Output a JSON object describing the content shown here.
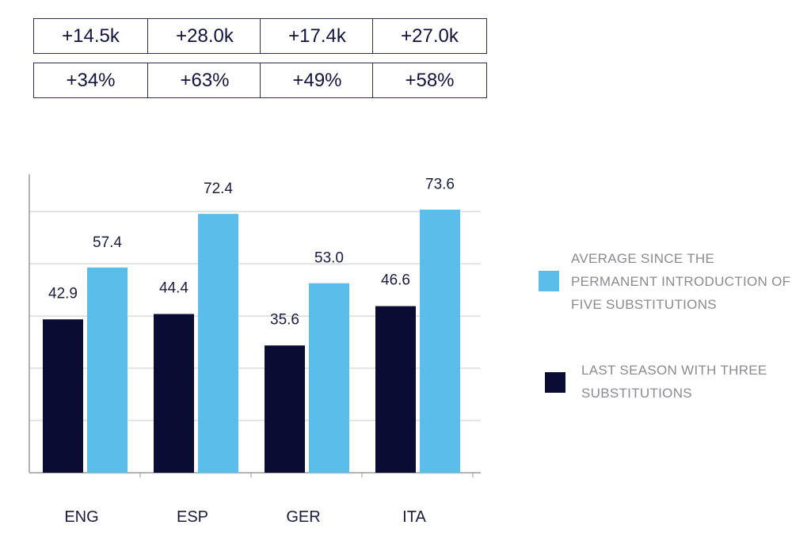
{
  "stat_boxes": {
    "absolute": [
      "+14.5k",
      "+28.0k",
      "+17.4k",
      "+27.0k"
    ],
    "percent": [
      "+34%",
      "+63%",
      "+49%",
      "+58%"
    ]
  },
  "colors": {
    "five_subs": "#5bbde9",
    "three_subs": "#0b0c33",
    "grid": "#c9c9cc",
    "axis": "#9a9a9f",
    "text": "#1a1b3d",
    "legend_text": "#8a8b92"
  },
  "legend": {
    "five_subs": "AVERAGE SINCE THE PERMANENT INTRODUCTION OF FIVE SUBSTITUTIONS",
    "three_subs": "LAST SEASON WITH THREE SUBSTITUTIONS"
  },
  "chart_data": {
    "type": "bar",
    "title": "",
    "xlabel": "",
    "ylabel": "",
    "categories": [
      "ENG",
      "ESP",
      "GER",
      "ITA"
    ],
    "series": [
      {
        "name": "LAST SEASON WITH THREE SUBSTITUTIONS",
        "values": [
          42.9,
          44.4,
          35.6,
          46.6
        ],
        "labels": [
          "42.9",
          "44.4",
          "35.6",
          "46.6"
        ]
      },
      {
        "name": "AVERAGE SINCE THE PERMANENT INTRODUCTION OF FIVE SUBSTITUTIONS",
        "values": [
          57.4,
          72.4,
          53.0,
          73.6
        ],
        "labels": [
          "57.4",
          "72.4",
          "53.0",
          "73.6"
        ]
      }
    ],
    "ylim": [
      0,
      83.5
    ],
    "grid": true,
    "legend_position": "right"
  }
}
